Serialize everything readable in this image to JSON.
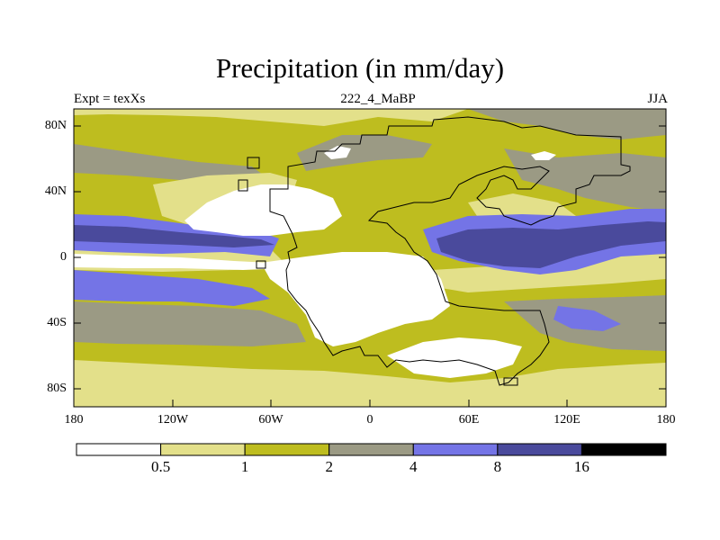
{
  "title": "Precipitation (in mm/day)",
  "subtitle": {
    "left": "Expt = texXs",
    "center": "222_4_MaBP",
    "right": "JJA"
  },
  "axes": {
    "y_ticks": [
      "80N",
      "40N",
      "0",
      "40S",
      "80S"
    ],
    "x_ticks": [
      "180",
      "120W",
      "60W",
      "0",
      "60E",
      "120E",
      "180"
    ]
  },
  "colorbar": {
    "levels": [
      "0.5",
      "1",
      "2",
      "4",
      "8",
      "16"
    ],
    "colors": [
      "#ffffff",
      "#e3e08a",
      "#bebd1f",
      "#9b9a84",
      "#7474e6",
      "#4a4a9c",
      "#000000"
    ]
  },
  "chart_data": {
    "type": "heatmap",
    "title": "Precipitation (in mm/day)",
    "experiment": "Expt = texXs",
    "period_label": "222_4_MaBP",
    "season": "JJA",
    "x_range": [
      -180,
      180
    ],
    "y_range": [
      -90,
      90
    ],
    "x_ticks": [
      "180",
      "120W",
      "60W",
      "0",
      "60E",
      "120E",
      "180"
    ],
    "y_ticks": [
      "80N",
      "40N",
      "0",
      "40S",
      "80S"
    ],
    "contour_levels": [
      0.5,
      1,
      2,
      4,
      8,
      16
    ],
    "units": "mm/day"
  }
}
